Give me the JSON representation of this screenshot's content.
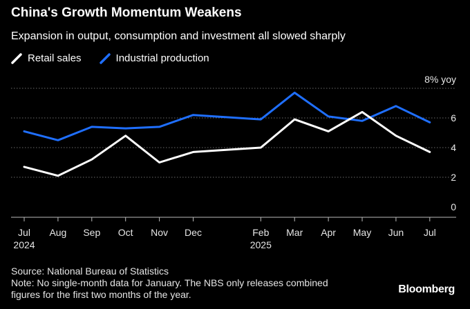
{
  "header": {
    "title": "China's Growth Momentum Weakens",
    "subtitle": "Expansion in output, consumption and investment all slowed sharply"
  },
  "chart_data": {
    "type": "line",
    "categories": [
      "Jul",
      "Aug",
      "Sep",
      "Oct",
      "Nov",
      "Dec",
      "Feb",
      "Mar",
      "Apr",
      "May",
      "Jun",
      "Jul"
    ],
    "category_sublabels": {
      "Jul": "2024",
      "Feb": "2025"
    },
    "x_dates": [
      "2024-07",
      "2024-08",
      "2024-09",
      "2024-10",
      "2024-11",
      "2024-12",
      "2025-02",
      "2025-03",
      "2025-04",
      "2025-05",
      "2025-06",
      "2025-07"
    ],
    "series": [
      {
        "name": "Retail sales",
        "color": "#ffffff",
        "values": [
          2.7,
          2.1,
          3.2,
          4.8,
          3.0,
          3.7,
          4.0,
          5.9,
          5.1,
          6.4,
          4.8,
          3.7
        ]
      },
      {
        "name": "Industrial production",
        "color": "#1f6fff",
        "values": [
          5.1,
          4.5,
          5.4,
          5.3,
          5.4,
          6.2,
          5.9,
          7.7,
          6.1,
          5.8,
          6.8,
          5.7
        ]
      }
    ],
    "y_ticks": [
      "8% yoy",
      "6",
      "4",
      "2",
      "0"
    ],
    "ylim": [
      0,
      8
    ],
    "grid": true,
    "legend_position": "top-left"
  },
  "footer": {
    "source": "Source: National Bureau of Statistics",
    "note_line1": "Note: No single-month data for January. The NBS only releases combined",
    "note_line2": "figures for the first two months of the year."
  },
  "brand": "Bloomberg"
}
